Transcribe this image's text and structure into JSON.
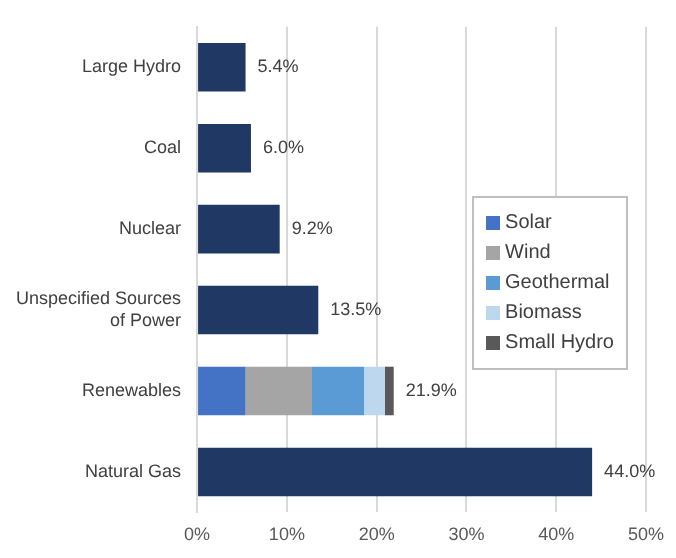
{
  "chart_data": {
    "type": "bar",
    "orientation": "horizontal",
    "stacked": true,
    "categories": [
      "Large Hydro",
      "Coal",
      "Nuclear",
      "Unspecified Sources of Power",
      "Renewables",
      "Natural Gas"
    ],
    "series": [
      {
        "color": "#203864",
        "values": [
          5.4,
          6.0,
          9.2,
          13.5,
          null,
          44.0
        ]
      },
      {
        "name": "Solar",
        "color": "#4472c4",
        "values": [
          null,
          null,
          null,
          null,
          5.4,
          null
        ]
      },
      {
        "name": "Wind",
        "color": "#a5a5a5",
        "values": [
          null,
          null,
          null,
          null,
          7.4,
          null
        ]
      },
      {
        "name": "Geothermal",
        "color": "#5b9bd5",
        "values": [
          null,
          null,
          null,
          null,
          5.8,
          null
        ]
      },
      {
        "name": "Biomass",
        "color": "#bdd7ee",
        "values": [
          null,
          null,
          null,
          null,
          2.3,
          null
        ]
      },
      {
        "name": "Small Hydro",
        "color": "#595959",
        "values": [
          null,
          null,
          null,
          null,
          1.0,
          null
        ]
      }
    ],
    "totals": [
      "5.4%",
      "6.0%",
      "9.2%",
      "13.5%",
      "21.9%",
      "44.0%"
    ],
    "xlim": [
      0,
      50
    ],
    "xticks": [
      {
        "value": 0,
        "label": "0%"
      },
      {
        "value": 10,
        "label": "10%"
      },
      {
        "value": 20,
        "label": "20%"
      },
      {
        "value": 30,
        "label": "30%"
      },
      {
        "value": 40,
        "label": "40%"
      },
      {
        "value": 50,
        "label": "50%"
      }
    ],
    "grid": "x",
    "legend": "right"
  }
}
